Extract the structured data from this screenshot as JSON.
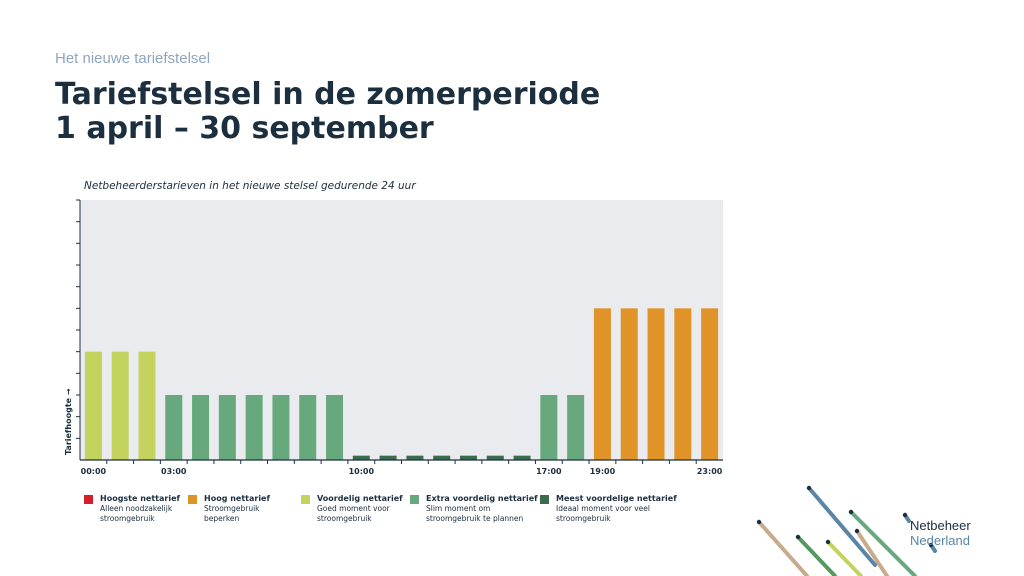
{
  "header": {
    "eyebrow": "Het nieuwe tariefstelsel",
    "title_line1": "Tariefstelsel in de zomerperiode",
    "title_line2": "1 april – 30 september"
  },
  "chart_subtitle": "Netbeheerderstarieven in het nieuwe stelsel gedurende 24 uur",
  "chart_data": {
    "type": "bar",
    "title": "Netbeheerderstarieven in het nieuwe stelsel gedurende 24 uur",
    "ylabel": "Tariefhoogte →",
    "xlabel": "",
    "categories": [
      "00:00",
      "01:00",
      "02:00",
      "03:00",
      "04:00",
      "05:00",
      "06:00",
      "07:00",
      "08:00",
      "09:00",
      "10:00",
      "11:00",
      "12:00",
      "13:00",
      "14:00",
      "15:00",
      "16:00",
      "17:00",
      "18:00",
      "19:00",
      "20:00",
      "21:00",
      "22:00",
      "23:00"
    ],
    "tick_labels": [
      {
        "hour": 0,
        "label": "00:00"
      },
      {
        "hour": 3,
        "label": "03:00"
      },
      {
        "hour": 10,
        "label": "10:00"
      },
      {
        "hour": 17,
        "label": "17:00"
      },
      {
        "hour": 19,
        "label": "19:00"
      },
      {
        "hour": 23,
        "label": "23:00"
      }
    ],
    "values": [
      5,
      5,
      5,
      3,
      3,
      3,
      3,
      3,
      3,
      3,
      0.2,
      0.2,
      0.2,
      0.2,
      0.2,
      0.2,
      0.2,
      3,
      3,
      7,
      7,
      7,
      7,
      7
    ],
    "tiers": [
      "voordelig",
      "voordelig",
      "voordelig",
      "extra",
      "extra",
      "extra",
      "extra",
      "extra",
      "extra",
      "extra",
      "meest",
      "meest",
      "meest",
      "meest",
      "meest",
      "meest",
      "meest",
      "extra",
      "extra",
      "hoog",
      "hoog",
      "hoog",
      "hoog",
      "hoog"
    ],
    "ylim": [
      0,
      12
    ],
    "yticks": 12,
    "grid": false,
    "y_tick_labels": false,
    "background": "#e9ebef",
    "colors": {
      "hoogste": "#d21f2a",
      "hoog": "#e09428",
      "voordelig": "#c4d35e",
      "extra": "#67a97c",
      "meest": "#3b6b4d"
    },
    "legend_placement": "bottom"
  },
  "legend": [
    {
      "tier": "hoogste",
      "title": "Hoogste nettarief",
      "desc_line1": "Alleen noodzakelijk",
      "desc_line2": "stroomgebruik",
      "color": "#d21f2a"
    },
    {
      "tier": "hoog",
      "title": "Hoog nettarief",
      "desc_line1": "Stroomgebruik",
      "desc_line2": "beperken",
      "color": "#e09428"
    },
    {
      "tier": "voordelig",
      "title": "Voordelig nettarief",
      "desc_line1": "Goed moment voor",
      "desc_line2": "stroomgebruik",
      "color": "#c4d35e"
    },
    {
      "tier": "extra",
      "title": "Extra voordelig nettarief",
      "desc_line1": "Slim moment om",
      "desc_line2": "stroomgebruik te plannen",
      "color": "#67a97c"
    },
    {
      "tier": "meest",
      "title": "Meest voordelige nettarief",
      "desc_line1": "Ideaal moment voor veel",
      "desc_line2": "stroomgebruik",
      "color": "#3b6b4d"
    }
  ],
  "logo": {
    "line1": "Netbeheer",
    "line2": "Nederland",
    "stripe_colors": [
      "#c8ab8b",
      "#55995f",
      "#c4d35e",
      "#67a97c",
      "#5b84a6"
    ]
  }
}
